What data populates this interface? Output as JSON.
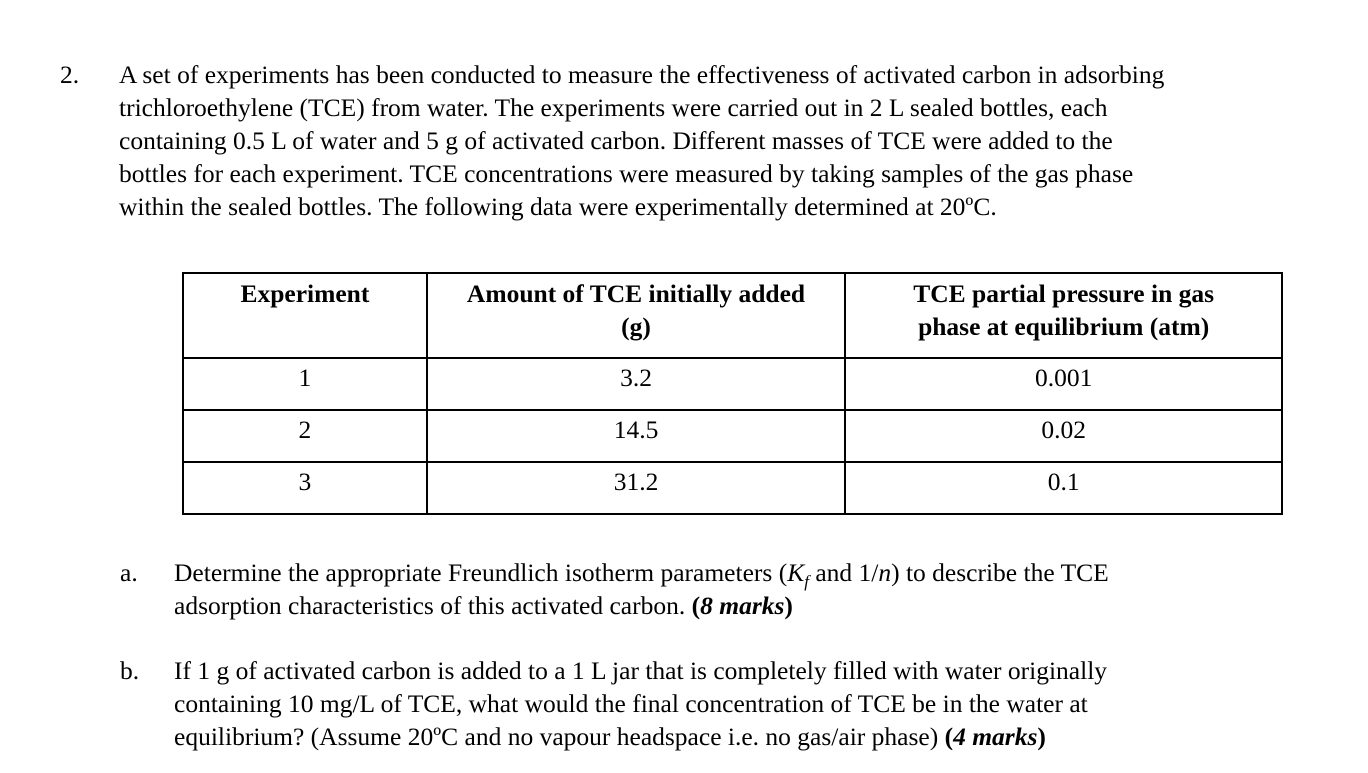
{
  "question": {
    "number": "2.",
    "text_lines": [
      "A set of experiments has been conducted to measure the effectiveness of activated carbon in adsorbing",
      "trichloroethylene (TCE) from water.   The experiments were carried out in 2 L sealed bottles, each",
      "containing 0.5 L of water and 5 g of activated carbon.   Different masses of TCE were added to the",
      "bottles for each experiment.   TCE concentrations were measured by taking samples of the gas phase",
      "within the sealed bottles.  The following data were experimentally determined at 20ºC."
    ]
  },
  "table": {
    "headers": [
      [
        "Experiment"
      ],
      [
        "Amount of TCE initially added",
        "(g)"
      ],
      [
        "TCE partial pressure in gas",
        "phase at equilibrium (atm)"
      ]
    ],
    "rows": [
      [
        "1",
        "3.2",
        "0.001"
      ],
      [
        "2",
        "14.5",
        "0.02"
      ],
      [
        "3",
        "31.2",
        "0.1"
      ]
    ]
  },
  "parts": [
    {
      "letter": "a.",
      "line1_pre": "Determine the appropriate Freundlich isotherm parameters (",
      "kf_k": "K",
      "kf_sub": "f",
      "line1_mid": " and 1/",
      "n_var": "n",
      "line1_post": ") to describe the TCE",
      "line2": "adsorption characteristics of this activated carbon.  ",
      "marks_open": "(",
      "marks_text": "8 marks",
      "marks_close": ")"
    },
    {
      "letter": "b.",
      "line1": "If 1 g of activated carbon is added to a 1 L jar that is completely filled with water originally",
      "line2": "containing 10 mg/L of TCE, what would the final concentration of TCE be in the water at",
      "line3": "equilibrium? (Assume 20ºC and no vapour headspace i.e. no gas/air phase) ",
      "marks_open": "(",
      "marks_text": "4 marks",
      "marks_close": ")"
    }
  ]
}
